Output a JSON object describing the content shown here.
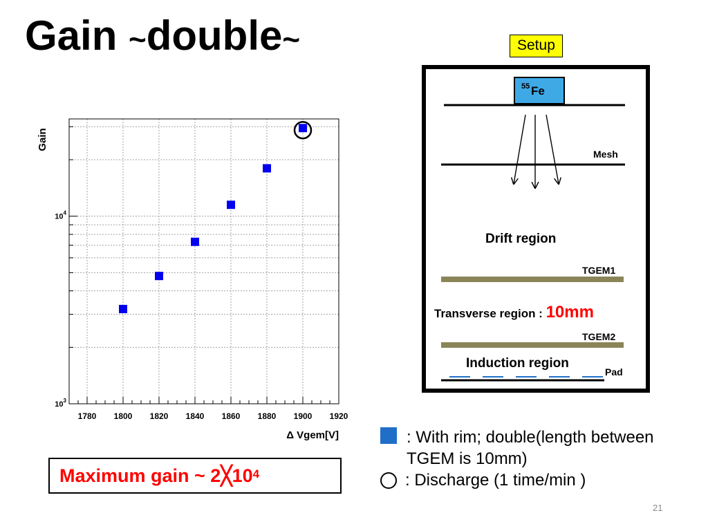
{
  "title": {
    "main": "Gain ",
    "tilde1": "~",
    "word": "double",
    "tilde2": "~"
  },
  "max_gain": {
    "text": "Maximum gain ~ 2",
    "times": "╳",
    "base": "10",
    "exp": "4"
  },
  "setup": {
    "badge": "Setup",
    "source": "Fe",
    "source_sup": "55",
    "mesh": "Mesh",
    "drift": "Drift region",
    "tgem1": "TGEM1",
    "transverse": "Transverse region : ",
    "transverse_value": "10mm",
    "tgem2": "TGEM2",
    "induction": "Induction region",
    "pad": "Pad"
  },
  "legend": {
    "square_text_line1": ": With rim; double(length between",
    "square_text_line2": "TGEM is 10mm)",
    "circle_text": ": Discharge (1 time/min )"
  },
  "page_number": "21",
  "colors": {
    "marker": "#0000ee",
    "legend_square": "#1f6fc8",
    "accent_red": "#ff0000",
    "badge": "#ffff00",
    "gem": "#8b8458",
    "pad": "#1f6fc8"
  },
  "chart_data": {
    "type": "scatter",
    "xlabel": "Δ Vgem[V]",
    "ylabel": "Gain",
    "xlim": [
      1770,
      1920
    ],
    "ylim": [
      1000,
      33000
    ],
    "yscale": "log",
    "grid": true,
    "xticks": [
      1780,
      1800,
      1820,
      1840,
      1860,
      1880,
      1900,
      1920
    ],
    "yticks": [
      {
        "value": 1000,
        "base": "10",
        "exp": "3"
      },
      {
        "value": 10000,
        "base": "10",
        "exp": "4"
      }
    ],
    "series": [
      {
        "x": [
          1800,
          1820,
          1840,
          1860,
          1880,
          1900
        ],
        "y": [
          3200,
          4800,
          7300,
          11500,
          18000,
          29500
        ]
      }
    ],
    "highlight": {
      "x": 1900,
      "y": 29500,
      "meaning": "discharge"
    }
  }
}
